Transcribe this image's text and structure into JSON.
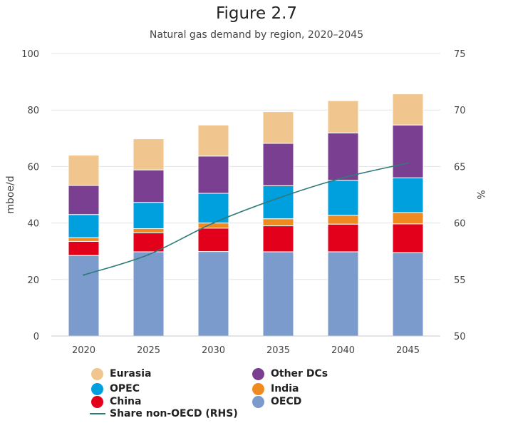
{
  "figure": {
    "title": "Figure 2.7",
    "subtitle": "Natural gas demand by region, 2020–2045"
  },
  "chart_data": {
    "type": "bar",
    "stacked": true,
    "title": "Figure 2.7",
    "subtitle": "Natural gas demand by region, 2020–2045",
    "xlabel": "",
    "ylabel": "mboe/d",
    "y2label": "%",
    "ylim": [
      0,
      100
    ],
    "y2lim": [
      50,
      75
    ],
    "yticks": [
      0,
      20,
      40,
      60,
      80,
      100
    ],
    "y2ticks": [
      50,
      55,
      60,
      65,
      70,
      75
    ],
    "grid": true,
    "legend_position": "bottom",
    "categories": [
      "2020",
      "2025",
      "2030",
      "2035",
      "2040",
      "2045"
    ],
    "series": [
      {
        "name": "OECD",
        "color": "#7b9bcc",
        "values": [
          28.5,
          29.8,
          29.9,
          29.8,
          29.8,
          29.5
        ]
      },
      {
        "name": "China",
        "color": "#e3001b",
        "values": [
          5.0,
          6.7,
          8.3,
          9.2,
          9.8,
          10.2
        ]
      },
      {
        "name": "India",
        "color": "#ee8a1f",
        "values": [
          1.3,
          1.5,
          1.8,
          2.5,
          3.1,
          4.0
        ]
      },
      {
        "name": "OPEC",
        "color": "#009fde",
        "values": [
          8.2,
          9.3,
          10.5,
          11.7,
          12.4,
          12.3
        ]
      },
      {
        "name": "Other DCs",
        "color": "#7b3f91",
        "values": [
          10.3,
          11.5,
          13.2,
          15.0,
          16.8,
          18.7
        ]
      },
      {
        "name": "Eurasia",
        "color": "#f1c68e",
        "values": [
          10.7,
          11.0,
          11.0,
          11.2,
          11.4,
          11.0
        ]
      }
    ],
    "line_series": {
      "name": "Share non-OECD (RHS)",
      "color": "#2e7b7b",
      "axis": "right",
      "values": [
        55.4,
        57.2,
        60.0,
        62.2,
        64.0,
        65.3
      ]
    }
  },
  "legend": {
    "items": [
      {
        "label": "Eurasia",
        "color": "#f1c68e",
        "kind": "dot"
      },
      {
        "label": "Other DCs",
        "color": "#7b3f91",
        "kind": "dot"
      },
      {
        "label": "OPEC",
        "color": "#009fde",
        "kind": "dot"
      },
      {
        "label": "India",
        "color": "#ee8a1f",
        "kind": "dot"
      },
      {
        "label": "China",
        "color": "#e3001b",
        "kind": "dot"
      },
      {
        "label": "OECD",
        "color": "#7b9bcc",
        "kind": "dot"
      },
      {
        "label": "Share non-OECD (RHS)",
        "color": "#2e7b7b",
        "kind": "line"
      }
    ]
  }
}
